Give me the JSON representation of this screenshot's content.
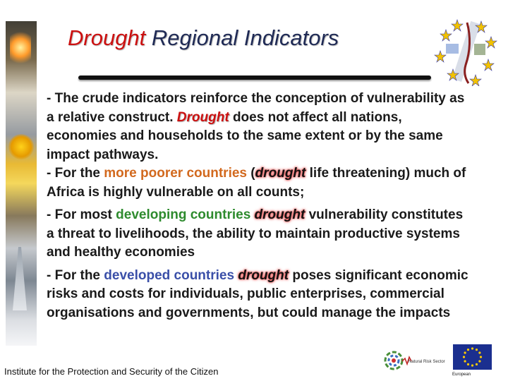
{
  "slide": {
    "title_accent": "Drought",
    "title_rest": " Regional Indicators",
    "paragraph1": {
      "before": "- The crude indicators reinforce the conception of vulnerability as a relative construct. ",
      "keyword": "Drought",
      "after": " does not affect all nations, economies and households to the same extent or by the same impact pathways."
    },
    "paragraph2": {
      "before": " - For the ",
      "highlight": "more poorer countries",
      "mid": " (",
      "keyword": "drought",
      "after": " life threatening) much of Africa is highly vulnerable on all counts;"
    },
    "paragraph3": {
      "before": " - For most ",
      "highlight": "developing countries",
      "keyword": "drought",
      "after": " vulnerability constitutes a threat to livelihoods, the ability to maintain productive systems and healthy economies"
    },
    "paragraph4": {
      "before": "- For the ",
      "highlight": "developed countries",
      "keyword": "drought",
      "after": " poses significant economic risks and costs for individuals, public enterprises, commercial organisations and governments, but could manage the impacts"
    },
    "footer": "Institute for the Protection and Security of the Citizen",
    "nrs_label": "Natural Risk Sector",
    "eu_label": "European"
  },
  "colors": {
    "title": "#1f2a55",
    "title_accent": "#cc1010",
    "poorer": "#d2691e",
    "developing": "#2e8b2e",
    "developed": "#3a4fa8",
    "eu_blue": "#1b2f8f",
    "eu_star": "#ffcc00"
  }
}
